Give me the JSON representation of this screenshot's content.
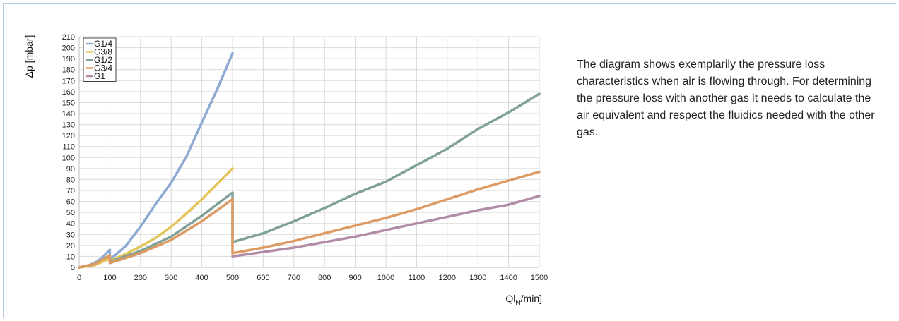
{
  "description": "The diagram shows exemplarily the pressure loss characteristics when air is flowing through. For determining the pressure loss with another gas it needs to calculate the air equivalent and respect the fluidics needed with the other gas.",
  "chart_data": {
    "type": "line",
    "title": "",
    "ylabel": "Δp [mbar]",
    "xlabel_main": "Ql",
    "xlabel_sub": "N",
    "xlabel_tail": "/min]",
    "xlim": [
      0,
      1500
    ],
    "ylim": [
      0,
      210
    ],
    "x_ticks": [
      0,
      100,
      200,
      300,
      400,
      500,
      600,
      700,
      800,
      900,
      1000,
      1100,
      1200,
      1300,
      1400,
      1500
    ],
    "y_ticks": [
      0,
      10,
      20,
      30,
      40,
      50,
      60,
      70,
      80,
      90,
      100,
      110,
      120,
      130,
      140,
      150,
      160,
      170,
      180,
      190,
      200,
      210
    ],
    "grid": true,
    "legend_position": "top-left",
    "series": [
      {
        "name": "G1/4",
        "color": "#8eaad2",
        "segments": [
          [
            [
              0,
              0
            ],
            [
              25,
              1
            ],
            [
              50,
              4
            ],
            [
              75,
              9
            ],
            [
              100,
              16
            ]
          ],
          [
            [
              100,
              7
            ],
            [
              150,
              19
            ],
            [
              200,
              37
            ],
            [
              250,
              58
            ],
            [
              300,
              77
            ],
            [
              350,
              101
            ],
            [
              400,
              132
            ],
            [
              450,
              162
            ],
            [
              500,
              195
            ]
          ]
        ]
      },
      {
        "name": "G3/8",
        "color": "#e2c458",
        "segments": [
          [
            [
              0,
              0
            ],
            [
              50,
              2
            ],
            [
              100,
              8
            ]
          ],
          [
            [
              100,
              6
            ],
            [
              150,
              12
            ],
            [
              200,
              19
            ],
            [
              250,
              27
            ],
            [
              300,
              37
            ],
            [
              350,
              49
            ],
            [
              400,
              62
            ],
            [
              450,
              76
            ],
            [
              500,
              90
            ]
          ]
        ]
      },
      {
        "name": "G1/2",
        "color": "#7fa197",
        "segments": [
          [
            [
              0,
              0
            ],
            [
              50,
              3
            ],
            [
              100,
              11
            ]
          ],
          [
            [
              100,
              5
            ],
            [
              200,
              15
            ],
            [
              300,
              28
            ],
            [
              400,
              47
            ],
            [
              500,
              68
            ]
          ],
          [
            [
              500,
              23
            ],
            [
              600,
              31
            ],
            [
              700,
              42
            ],
            [
              800,
              54
            ],
            [
              900,
              67
            ],
            [
              1000,
              78
            ],
            [
              1100,
              93
            ],
            [
              1200,
              108
            ],
            [
              1300,
              126
            ],
            [
              1400,
              141
            ],
            [
              1500,
              158
            ]
          ]
        ]
      },
      {
        "name": "G3/4",
        "color": "#dd9a62",
        "segments": [
          [
            [
              0,
              0
            ],
            [
              50,
              3
            ],
            [
              100,
              11
            ]
          ],
          [
            [
              100,
              4
            ],
            [
              200,
              13
            ],
            [
              300,
              25
            ],
            [
              400,
              42
            ],
            [
              500,
              62
            ]
          ],
          [
            [
              500,
              13
            ],
            [
              600,
              18
            ],
            [
              700,
              24
            ],
            [
              800,
              31
            ],
            [
              900,
              38
            ],
            [
              1000,
              45
            ],
            [
              1100,
              53
            ],
            [
              1200,
              62
            ],
            [
              1300,
              71
            ],
            [
              1400,
              79
            ],
            [
              1500,
              87
            ]
          ]
        ]
      },
      {
        "name": "G1",
        "color": "#b28ba7",
        "segments": [
          [
            [
              500,
              10
            ],
            [
              600,
              14
            ],
            [
              700,
              18
            ],
            [
              800,
              23
            ],
            [
              900,
              28
            ],
            [
              1000,
              34
            ],
            [
              1100,
              40
            ],
            [
              1200,
              46
            ],
            [
              1300,
              52
            ],
            [
              1400,
              57
            ],
            [
              1500,
              65
            ]
          ]
        ]
      }
    ]
  }
}
